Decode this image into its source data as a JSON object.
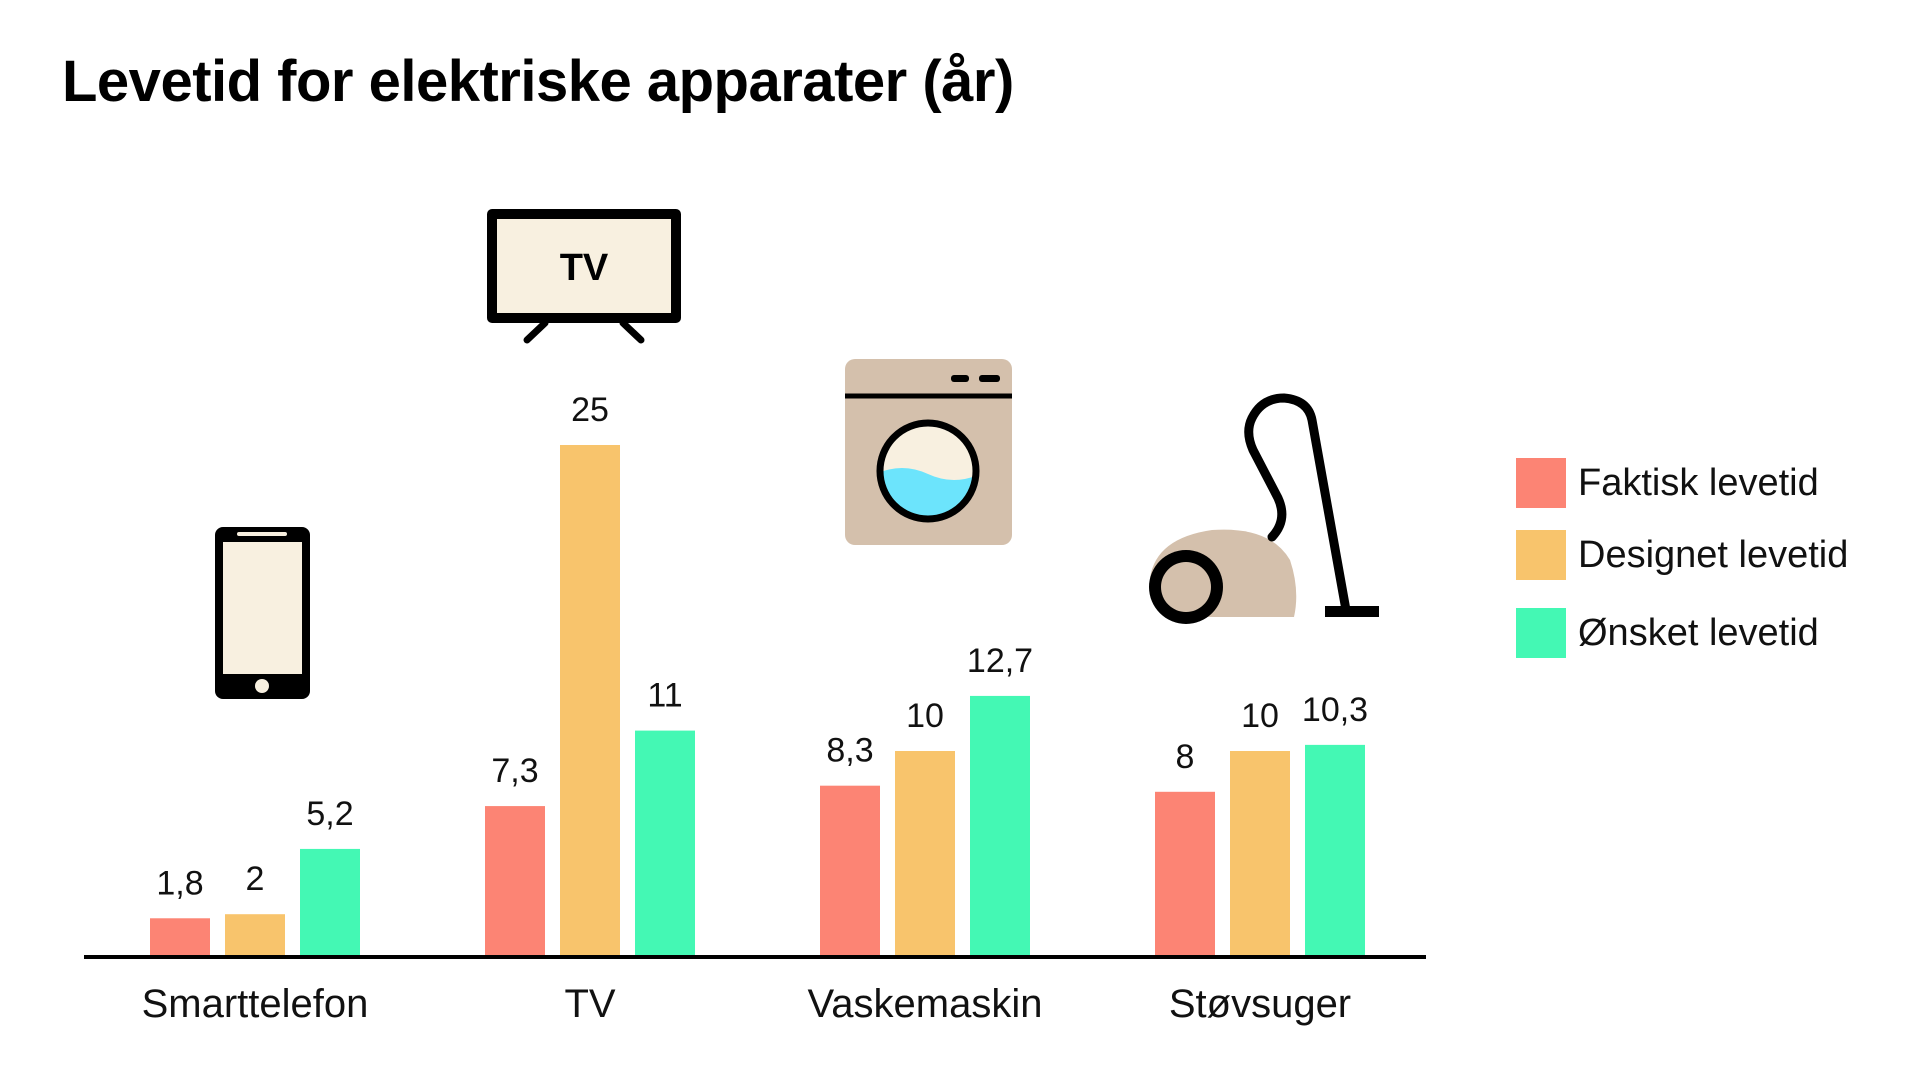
{
  "colors": {
    "faktisk": "#fc8474",
    "designet": "#f8c46c",
    "onsket": "#44f8b4",
    "icon_dark": "#000000",
    "icon_fill": "#f8f0e0",
    "washer_body": "#d4c0ac",
    "washer_water": "#6ce4fc",
    "vacuum_body": "#d4c0ac"
  },
  "icons": {
    "smarttelefon": "smartphone-icon",
    "tv": "tv-icon",
    "vaskemaskin": "washing-machine-icon",
    "stovsuger": "vacuum-cleaner-icon"
  },
  "tv_icon_text": "TV",
  "chart_data": {
    "type": "bar",
    "title": "Levetid for elektriske apparater (år)",
    "categories": [
      "Smarttelefon",
      "TV",
      "Vaskemaskin",
      "Støvsuger"
    ],
    "series": [
      {
        "name": "Faktisk levetid",
        "color": "#fc8474",
        "values": [
          1.8,
          7.3,
          8.3,
          8
        ],
        "labels": [
          "1,8",
          "7,3",
          "8,3",
          "8"
        ]
      },
      {
        "name": "Designet levetid",
        "color": "#f8c46c",
        "values": [
          2,
          25,
          10,
          10
        ],
        "labels": [
          "2",
          "25",
          "10",
          "10"
        ]
      },
      {
        "name": "Ønsket levetid",
        "color": "#44f8b4",
        "values": [
          5.2,
          11,
          12.7,
          10.3
        ],
        "labels": [
          "5,2",
          "11",
          "12,7",
          "10,3"
        ]
      }
    ],
    "ylim": [
      0,
      25
    ],
    "grid": false,
    "legend_position": "right"
  }
}
